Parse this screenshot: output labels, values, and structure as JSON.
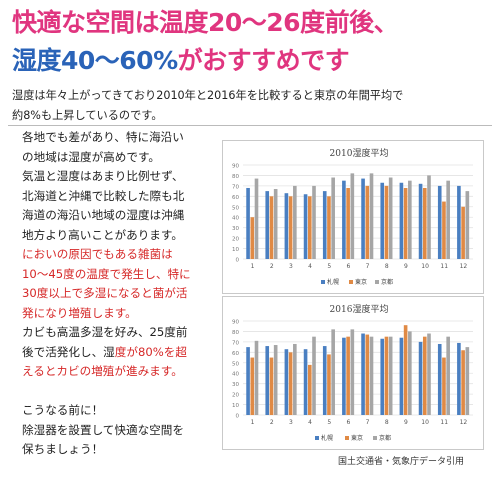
{
  "headline": {
    "line1": "快適な空間は温度20～26度前後、",
    "line2_part1": "湿度40～60%",
    "line2_part2": "がおすすめです"
  },
  "intro": {
    "line1": "湿度は年々上がってきており2010年と2016年を比較すると東京の年間平均で",
    "line2": "約8%も上昇しているのです。"
  },
  "body": {
    "lines": [
      {
        "text": "各地でも差があり、特に海沿い",
        "red": false
      },
      {
        "text": "の地域は湿度が高めです。",
        "red": false
      },
      {
        "text": "気温と湿度はあまり比例せず、",
        "red": false
      },
      {
        "text": "北海道と沖縄で比較した際も北",
        "red": false
      },
      {
        "text": "海道の海沿い地域の湿度は沖縄",
        "red": false
      },
      {
        "text": "地方より高いことがあります。",
        "red": false
      },
      {
        "text": "においの原因でもある雑菌は",
        "red": true
      },
      {
        "text": "10～45度の温度で発生し、特に",
        "red": true
      },
      {
        "text": "30度以上で多湿になると菌が活",
        "red": true
      },
      {
        "text": "発になり増殖します。",
        "red": true
      },
      {
        "text": "カビも高温多湿を好み、25度前",
        "red": false
      },
      {
        "text": "後で活発化し、湿度が80%を超",
        "red": false,
        "red_from": 8
      },
      {
        "text": "えるとカビの増殖が進みます。",
        "red": true
      },
      {
        "text": "",
        "red": false
      },
      {
        "text": "こうなる前に！",
        "red": false
      },
      {
        "text": "除湿器を設置して快適な空間を",
        "red": false
      },
      {
        "text": "保ちましょう！",
        "red": false
      }
    ]
  },
  "source": "国土交通省・気象庁データ引用",
  "colors": {
    "sapporo": "#4a7fc1",
    "tokyo": "#e08a45",
    "kyoto": "#a6a6a6"
  },
  "chart_data": [
    {
      "type": "bar",
      "title": "2010湿度平均",
      "categories": [
        "1",
        "2",
        "3",
        "4",
        "5",
        "6",
        "7",
        "8",
        "9",
        "10",
        "11",
        "12"
      ],
      "ylim": [
        0,
        90
      ],
      "yticks": [
        0,
        10,
        20,
        30,
        40,
        50,
        60,
        70,
        80,
        90
      ],
      "legend_position": "bottom",
      "series": [
        {
          "name": "札幌",
          "values": [
            68,
            65,
            63,
            62,
            65,
            75,
            77,
            73,
            73,
            72,
            70,
            70
          ]
        },
        {
          "name": "東京",
          "values": [
            40,
            60,
            60,
            60,
            60,
            68,
            70,
            70,
            68,
            68,
            55,
            50
          ]
        },
        {
          "name": "京都",
          "values": [
            77,
            67,
            70,
            70,
            78,
            82,
            82,
            78,
            75,
            80,
            75,
            65
          ]
        }
      ]
    },
    {
      "type": "bar",
      "title": "2016湿度平均",
      "categories": [
        "1",
        "2",
        "3",
        "4",
        "5",
        "6",
        "7",
        "8",
        "9",
        "10",
        "11",
        "12"
      ],
      "ylim": [
        0,
        90
      ],
      "yticks": [
        0,
        10,
        20,
        30,
        40,
        50,
        60,
        70,
        80,
        90
      ],
      "legend_position": "bottom",
      "series": [
        {
          "name": "札幌",
          "values": [
            65,
            66,
            63,
            63,
            66,
            74,
            78,
            73,
            74,
            70,
            68,
            69
          ]
        },
        {
          "name": "東京",
          "values": [
            55,
            55,
            60,
            48,
            58,
            75,
            77,
            75,
            86,
            75,
            55,
            62
          ]
        },
        {
          "name": "京都",
          "values": [
            71,
            67,
            68,
            75,
            82,
            82,
            75,
            75,
            80,
            78,
            75,
            65
          ]
        }
      ]
    }
  ]
}
